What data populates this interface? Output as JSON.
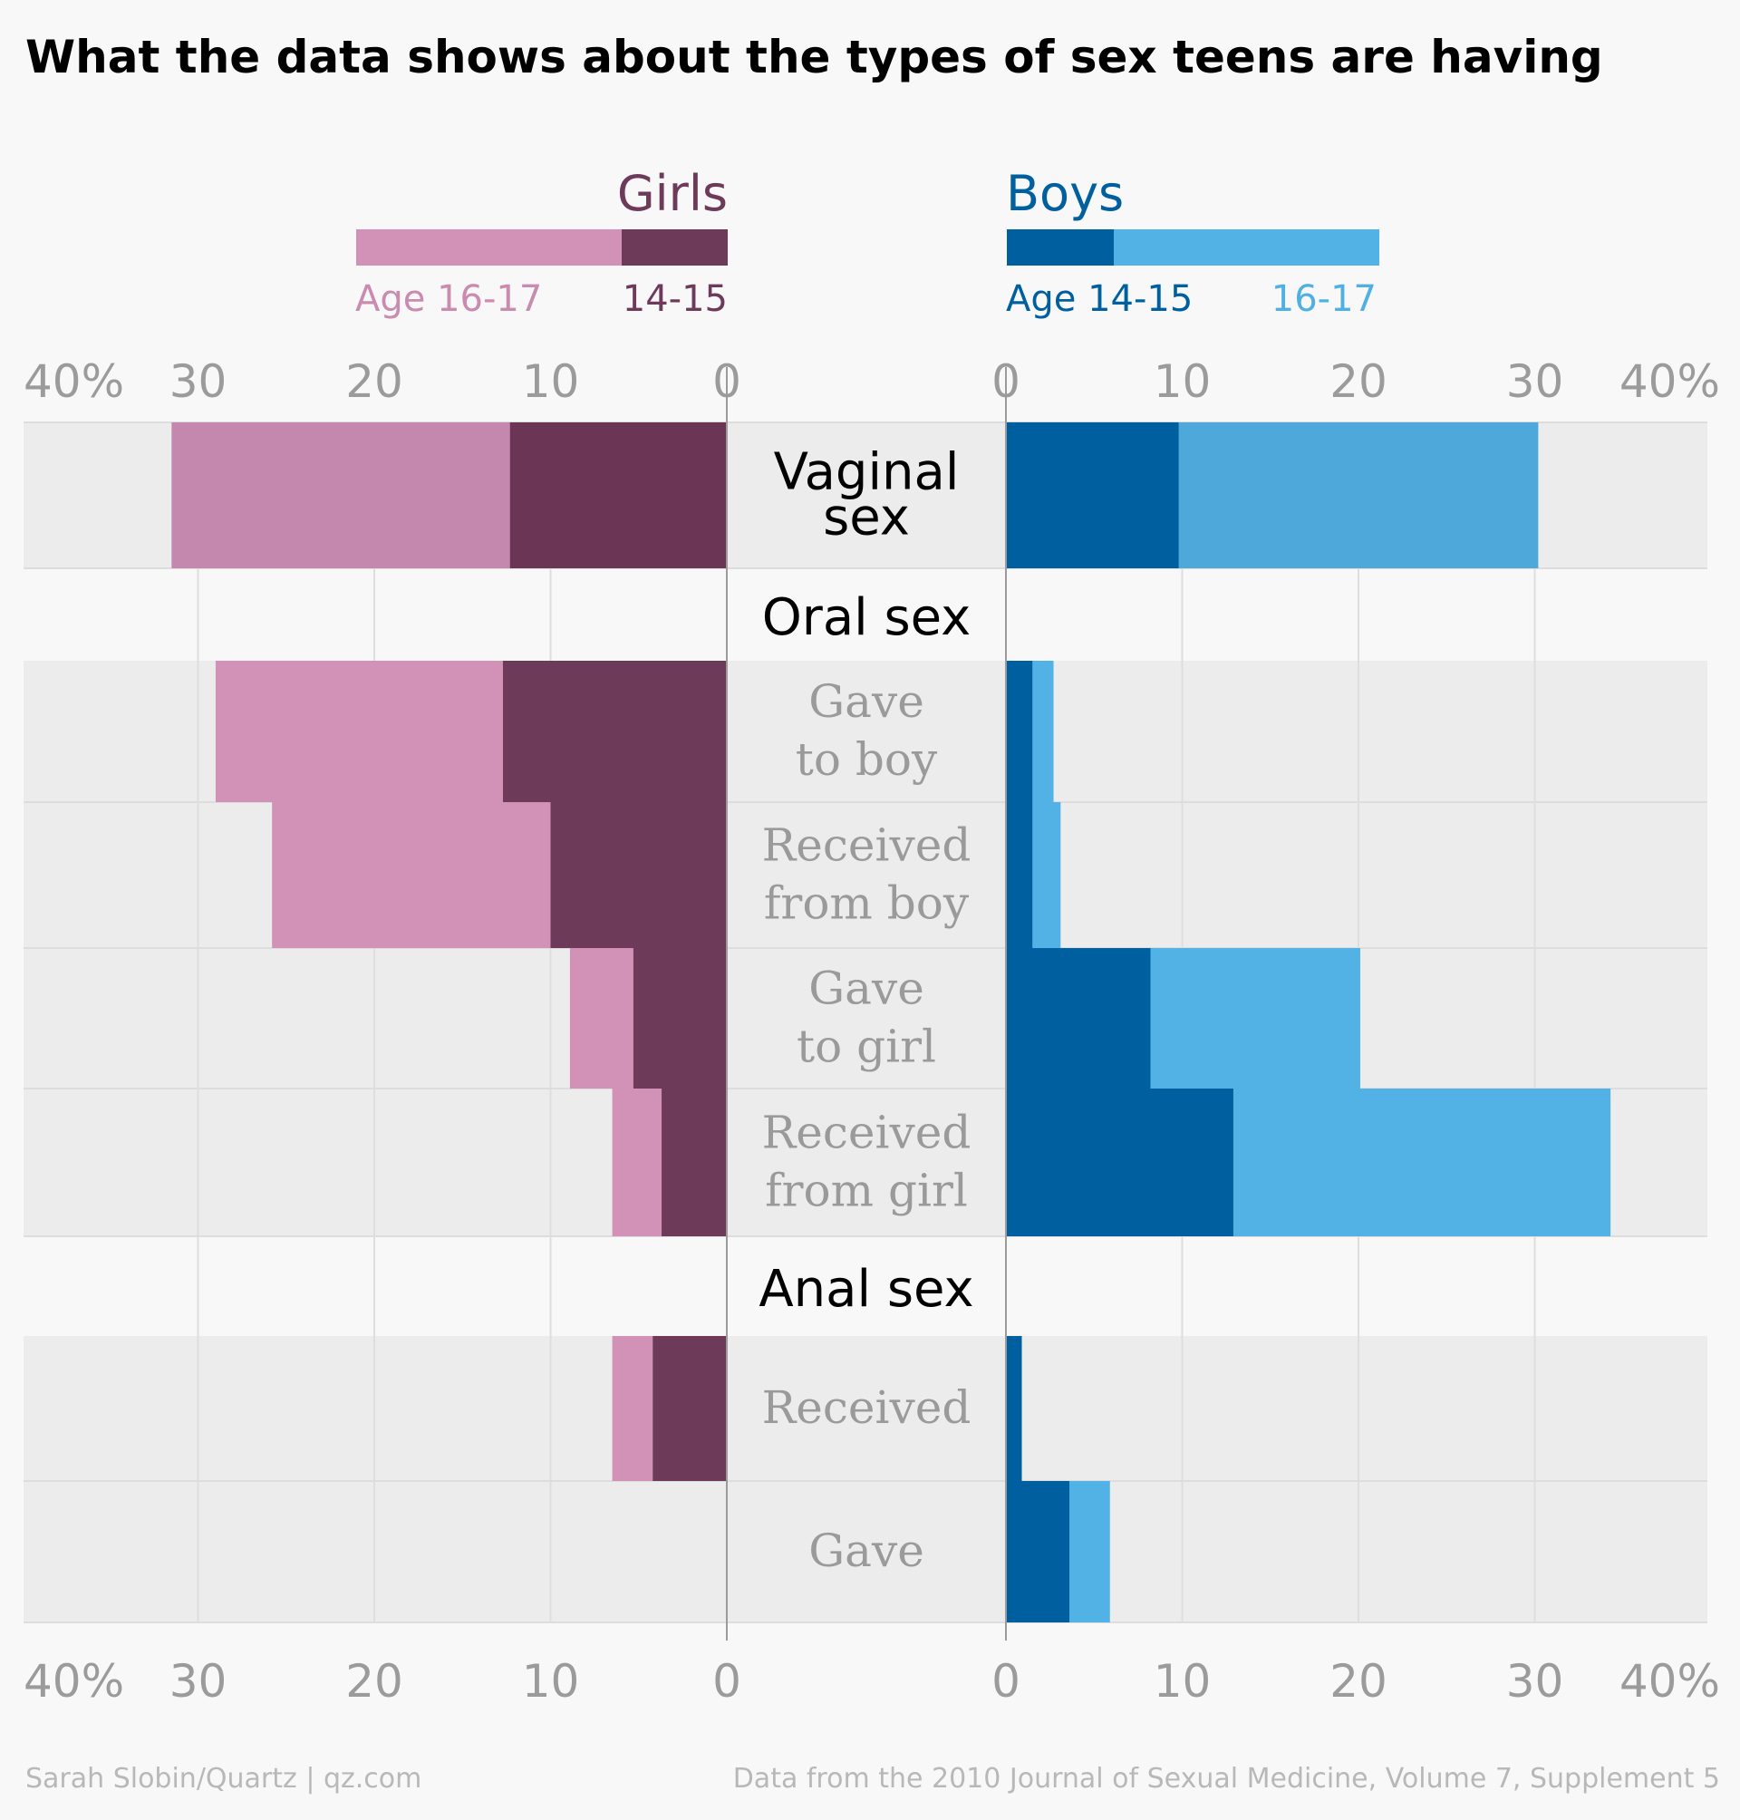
{
  "title": "What the data shows about the types of sex teens are having",
  "legend": {
    "girls": {
      "label": "Girls",
      "older": "Age 16-17",
      "younger": "14-15"
    },
    "boys": {
      "label": "Boys",
      "younger": "Age 14-15",
      "older": "16-17"
    }
  },
  "axis_ticks": [
    "40%",
    "30",
    "20",
    "10",
    "0"
  ],
  "colors": {
    "girls_head": "#6d3a5a",
    "girls_older": "#d291b6",
    "girls_younger": "#6d3a5a",
    "girls_older_legend_text": "#c98bb0",
    "boys_head": "#005f9e",
    "boys_younger": "#005f9e",
    "boys_older": "#52b1e5",
    "boys_older_legend_text": "#4fb0e4"
  },
  "sections": {
    "oral": "Oral sex",
    "anal": "Anal sex"
  },
  "footer": {
    "credit": "Sarah Slobin/Quartz | qz.com",
    "source": "Data from the 2010 Journal of Sexual Medicine, Volume 7, Supplement 5"
  },
  "chart_data": {
    "type": "bar",
    "orientation": "horizontal, back-to-back (girls left, boys right), stacked by age",
    "unit": "%",
    "xlim": [
      0,
      40
    ],
    "grid": true,
    "categories": [
      [
        "Vaginal",
        "sex"
      ],
      [
        "Gave",
        "to boy"
      ],
      [
        "Received",
        "from boy"
      ],
      [
        "Gave",
        "to girl"
      ],
      [
        "Received",
        "from girl"
      ],
      [
        "Received"
      ],
      [
        "Gave"
      ]
    ],
    "series": [
      {
        "name": "Girls Age 14-15",
        "side": "left",
        "values": [
          12.3,
          12.7,
          10,
          5.3,
          3.7,
          4.2,
          0
        ]
      },
      {
        "name": "Girls Age 16-17",
        "side": "left",
        "values": [
          31.5,
          29,
          25.8,
          8.9,
          6.5,
          6.5,
          0
        ]
      },
      {
        "name": "Boys Age 14-15",
        "side": "right",
        "values": [
          9.8,
          1.5,
          1.5,
          8.2,
          12.9,
          0.9,
          3.6
        ]
      },
      {
        "name": "Boys Age 16-17",
        "side": "right",
        "values": [
          30.2,
          2.7,
          3.1,
          20.1,
          34.3,
          0.9,
          5.9
        ]
      }
    ]
  }
}
